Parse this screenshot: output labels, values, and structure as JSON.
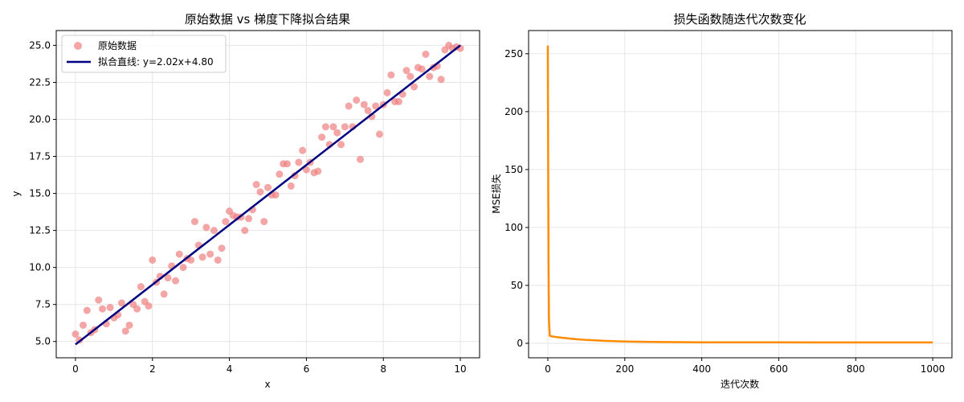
{
  "chart_data": [
    {
      "type": "scatter",
      "title": "原始数据 vs 梯度下降拟合结果",
      "xlabel": "x",
      "ylabel": "y",
      "xlim": [
        -0.5,
        10.5
      ],
      "ylim": [
        3.9,
        26.0
      ],
      "xticks": [
        0,
        2,
        4,
        6,
        8,
        10
      ],
      "yticks": [
        5.0,
        7.5,
        10.0,
        12.5,
        15.0,
        17.5,
        20.0,
        22.5,
        25.0
      ],
      "xtick_labels": [
        "0",
        "2",
        "4",
        "6",
        "8",
        "10"
      ],
      "ytick_labels": [
        "5.0",
        "7.5",
        "10.0",
        "12.5",
        "15.0",
        "17.5",
        "20.0",
        "22.5",
        "25.0"
      ],
      "grid": true,
      "legend_position": "top-left",
      "series": [
        {
          "name": "原始数据",
          "kind": "scatter",
          "color": "#f08080",
          "x": [
            0.0,
            0.1,
            0.2,
            0.3,
            0.4,
            0.5,
            0.6,
            0.7,
            0.8,
            0.9,
            1.0,
            1.1,
            1.2,
            1.3,
            1.4,
            1.5,
            1.6,
            1.7,
            1.8,
            1.9,
            2.0,
            2.1,
            2.2,
            2.3,
            2.4,
            2.5,
            2.6,
            2.7,
            2.8,
            2.9,
            3.0,
            3.1,
            3.2,
            3.3,
            3.4,
            3.5,
            3.6,
            3.7,
            3.8,
            3.9,
            4.0,
            4.1,
            4.2,
            4.3,
            4.4,
            4.5,
            4.6,
            4.7,
            4.8,
            4.9,
            5.0,
            5.1,
            5.2,
            5.3,
            5.4,
            5.5,
            5.6,
            5.7,
            5.8,
            5.9,
            6.0,
            6.1,
            6.2,
            6.3,
            6.4,
            6.5,
            6.6,
            6.7,
            6.8,
            6.9,
            7.0,
            7.1,
            7.2,
            7.3,
            7.4,
            7.5,
            7.6,
            7.7,
            7.8,
            7.9,
            8.0,
            8.1,
            8.2,
            8.3,
            8.4,
            8.5,
            8.6,
            8.7,
            8.8,
            8.9,
            9.0,
            9.1,
            9.2,
            9.3,
            9.4,
            9.5,
            9.6,
            9.7,
            9.8,
            9.9,
            10.0
          ],
          "y": [
            5.5,
            5.1,
            6.1,
            7.1,
            5.6,
            5.8,
            7.8,
            7.2,
            6.2,
            7.3,
            6.6,
            6.8,
            7.6,
            5.7,
            6.1,
            7.5,
            7.2,
            8.7,
            7.7,
            7.4,
            10.5,
            9.0,
            9.4,
            8.2,
            9.3,
            10.1,
            9.1,
            10.9,
            10.0,
            10.6,
            10.5,
            13.1,
            11.5,
            10.7,
            12.7,
            10.9,
            12.5,
            10.5,
            11.3,
            13.1,
            13.8,
            13.5,
            13.4,
            13.4,
            12.5,
            13.3,
            13.9,
            15.6,
            15.1,
            13.1,
            15.4,
            14.9,
            14.9,
            16.3,
            17.0,
            17.0,
            15.5,
            16.2,
            17.1,
            17.9,
            16.6,
            17.1,
            16.4,
            16.5,
            18.8,
            19.5,
            18.3,
            19.5,
            19.1,
            18.3,
            19.5,
            20.9,
            19.5,
            21.3,
            17.3,
            21.0,
            20.6,
            20.2,
            20.9,
            19.0,
            21.0,
            21.8,
            23.0,
            21.2,
            21.2,
            21.7,
            23.3,
            22.9,
            22.2,
            23.5,
            23.4,
            24.4,
            22.9,
            23.5,
            23.6,
            22.7,
            24.7,
            25.0,
            24.8,
            24.9,
            24.8
          ]
        },
        {
          "name": "拟合直线: y=2.02x+4.80",
          "kind": "line",
          "color": "#000080",
          "x": [
            0,
            10
          ],
          "y": [
            4.8,
            25.0
          ]
        }
      ]
    },
    {
      "type": "line",
      "title": "损失函数随迭代次数变化",
      "xlabel": "迭代次数",
      "ylabel": "MSE损失",
      "xlim": [
        -50,
        1050
      ],
      "ylim": [
        -12.5,
        270
      ],
      "xticks": [
        0,
        200,
        400,
        600,
        800,
        1000
      ],
      "yticks": [
        0,
        50,
        100,
        150,
        200,
        250
      ],
      "xtick_labels": [
        "0",
        "200",
        "400",
        "600",
        "800",
        "1000"
      ],
      "ytick_labels": [
        "0",
        "50",
        "100",
        "150",
        "200",
        "250"
      ],
      "grid": true,
      "series": [
        {
          "kind": "line",
          "color": "#ff8c00",
          "x": [
            0,
            1,
            2,
            3,
            5,
            10,
            20,
            40,
            60,
            80,
            100,
            150,
            200,
            250,
            300,
            400,
            500,
            600,
            700,
            800,
            900,
            1000
          ],
          "y": [
            257.0,
            140.0,
            60.0,
            20.0,
            6.5,
            6.0,
            5.5,
            4.7,
            4.0,
            3.4,
            2.9,
            2.1,
            1.6,
            1.3,
            1.1,
            0.9,
            0.85,
            0.82,
            0.81,
            0.8,
            0.8,
            0.8
          ]
        }
      ]
    }
  ]
}
